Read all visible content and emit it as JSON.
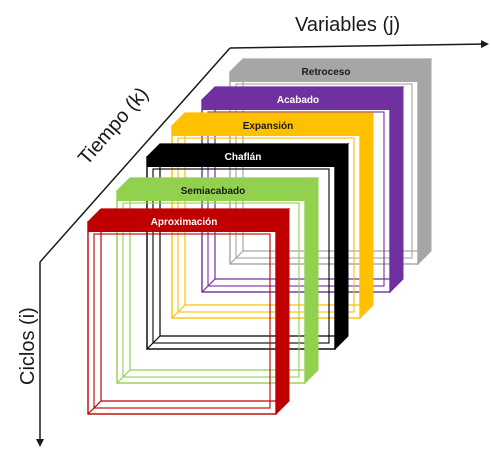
{
  "axes": {
    "variables": "Variables (j)",
    "tiempo": "Tiempo (k)",
    "ciclos": "Ciclos (i)"
  },
  "slabs": [
    {
      "label": "Retroceso",
      "color": "#a6a6a6",
      "label_color": "#1a1a1a"
    },
    {
      "label": "Acabado",
      "color": "#7030a0",
      "label_color": "#ffffff"
    },
    {
      "label": "Expansión",
      "color": "#ffc000",
      "label_color": "#1a1a1a"
    },
    {
      "label": "Chaflán",
      "color": "#000000",
      "label_color": "#ffffff"
    },
    {
      "label": "Semiacabado",
      "color": "#92d050",
      "label_color": "#1a1a1a"
    },
    {
      "label": "Aproximación",
      "color": "#c00000",
      "label_color": "#ffffff"
    }
  ]
}
